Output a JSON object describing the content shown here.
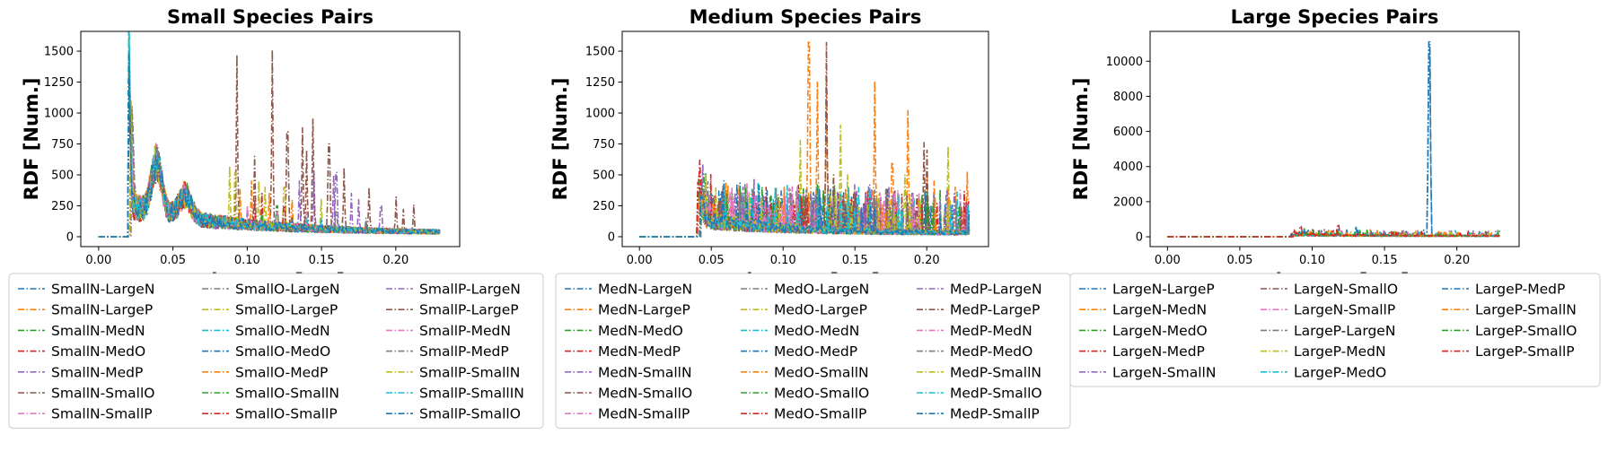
{
  "chart_data": [
    {
      "type": "line",
      "title": "Small Species Pairs",
      "xlabel": "Distance [nm]",
      "ylabel": "RDF [Num.]",
      "xlim": [
        -0.012,
        0.243
      ],
      "ylim": [
        -80,
        1660
      ],
      "xticks": [
        "0.00",
        "0.05",
        "0.10",
        "0.15",
        "0.20"
      ],
      "xtick_values": [
        0,
        0.05,
        0.1,
        0.15,
        0.2
      ],
      "yticks": [
        "0",
        "250",
        "500",
        "750",
        "1000",
        "1250",
        "1500"
      ],
      "ytick_values": [
        0,
        250,
        500,
        750,
        1000,
        1250,
        1500
      ],
      "legend_columns": 3,
      "legend_placement": "below",
      "series": [
        {
          "name": "SmallN-LargeN",
          "color": "#1f77b4",
          "onset": 0.02,
          "peak": 1150,
          "spikes": [
            [
              0.1,
              200
            ],
            [
              0.15,
              150
            ]
          ]
        },
        {
          "name": "SmallN-LargeP",
          "color": "#ff7f0e",
          "onset": 0.02,
          "peak": 1050,
          "spikes": [
            [
              0.095,
              380
            ],
            [
              0.13,
              300
            ]
          ]
        },
        {
          "name": "SmallN-MedN",
          "color": "#2ca02c",
          "onset": 0.02,
          "peak": 1270,
          "spikes": [
            [
              0.12,
              250
            ]
          ]
        },
        {
          "name": "SmallN-MedO",
          "color": "#d62728",
          "onset": 0.02,
          "peak": 1000,
          "spikes": [
            [
              0.11,
              350
            ]
          ]
        },
        {
          "name": "SmallN-MedP",
          "color": "#9467bd",
          "onset": 0.021,
          "peak": 950,
          "spikes": [
            [
              0.145,
              530
            ],
            [
              0.16,
              520
            ],
            [
              0.175,
              300
            ]
          ]
        },
        {
          "name": "SmallN-SmallO",
          "color": "#8c564b",
          "onset": 0.02,
          "peak": 900,
          "spikes": [
            [
              0.093,
              1470
            ],
            [
              0.117,
              1510
            ],
            [
              0.127,
              850
            ],
            [
              0.137,
              880
            ],
            [
              0.144,
              950
            ],
            [
              0.155,
              750
            ],
            [
              0.165,
              560
            ],
            [
              0.2,
              320
            ],
            [
              0.212,
              260
            ]
          ]
        },
        {
          "name": "SmallN-SmallP",
          "color": "#e377c2",
          "onset": 0.02,
          "peak": 850,
          "spikes": [
            [
              0.06,
              200
            ],
            [
              0.1,
              250
            ],
            [
              0.14,
              200
            ]
          ]
        },
        {
          "name": "SmallO-LargeN",
          "color": "#7f7f7f",
          "onset": 0.021,
          "peak": 900,
          "spikes": [
            [
              0.12,
              200
            ],
            [
              0.18,
              150
            ]
          ]
        },
        {
          "name": "SmallO-LargeP",
          "color": "#bcbd22",
          "onset": 0.021,
          "peak": 800,
          "spikes": [
            [
              0.088,
              570
            ],
            [
              0.108,
              450
            ],
            [
              0.125,
              400
            ],
            [
              0.15,
              300
            ]
          ]
        },
        {
          "name": "SmallO-MedN",
          "color": "#17becf",
          "onset": 0.02,
          "peak": 1580,
          "spikes": [
            [
              0.14,
              150
            ]
          ]
        },
        {
          "name": "SmallO-MedO",
          "color": "#1f77b4",
          "onset": 0.02,
          "peak": 1100,
          "spikes": [
            [
              0.13,
              150
            ]
          ]
        },
        {
          "name": "SmallO-MedP",
          "color": "#ff7f0e",
          "onset": 0.021,
          "peak": 900,
          "spikes": [
            [
              0.103,
              450
            ],
            [
              0.115,
              350
            ]
          ]
        },
        {
          "name": "SmallO-SmallN",
          "color": "#2ca02c",
          "onset": 0.02,
          "peak": 1000,
          "spikes": [
            [
              0.11,
              200
            ]
          ]
        },
        {
          "name": "SmallO-SmallP",
          "color": "#d62728",
          "onset": 0.02,
          "peak": 950,
          "spikes": [
            [
              0.105,
              300
            ],
            [
              0.125,
              250
            ]
          ]
        },
        {
          "name": "SmallP-LargeN",
          "color": "#9467bd",
          "onset": 0.022,
          "peak": 800,
          "spikes": [
            [
              0.135,
              450
            ],
            [
              0.158,
              500
            ],
            [
              0.17,
              350
            ],
            [
              0.19,
              250
            ]
          ]
        },
        {
          "name": "SmallP-LargeP",
          "color": "#8c564b",
          "onset": 0.021,
          "peak": 800,
          "spikes": [
            [
              0.105,
              650
            ],
            [
              0.14,
              700
            ],
            [
              0.182,
              400
            ],
            [
              0.205,
              220
            ]
          ]
        },
        {
          "name": "SmallP-MedN",
          "color": "#e377c2",
          "onset": 0.021,
          "peak": 750,
          "spikes": [
            [
              0.12,
              200
            ]
          ]
        },
        {
          "name": "SmallP-MedP",
          "color": "#7f7f7f",
          "onset": 0.022,
          "peak": 800,
          "spikes": [
            [
              0.16,
              200
            ]
          ]
        },
        {
          "name": "SmallP-SmallN",
          "color": "#bcbd22",
          "onset": 0.021,
          "peak": 850,
          "spikes": [
            [
              0.092,
              520
            ],
            [
              0.112,
              400
            ]
          ]
        },
        {
          "name": "SmallP-SmallIN",
          "color": "#17becf",
          "onset": 0.02,
          "peak": 1500,
          "spikes": [
            [
              0.15,
              150
            ]
          ]
        },
        {
          "name": "SmallP-SmallO",
          "color": "#1f77b4",
          "onset": 0.02,
          "peak": 1150,
          "spikes": [
            [
              0.08,
              150
            ]
          ]
        }
      ]
    },
    {
      "type": "line",
      "title": "Medium Species Pairs",
      "xlabel": "Distance [nm]",
      "ylabel": "RDF [Num.]",
      "xlim": [
        -0.012,
        0.243
      ],
      "ylim": [
        -80,
        1660
      ],
      "xticks": [
        "0.00",
        "0.05",
        "0.10",
        "0.15",
        "0.20"
      ],
      "xtick_values": [
        0,
        0.05,
        0.1,
        0.15,
        0.2
      ],
      "yticks": [
        "0",
        "250",
        "500",
        "750",
        "1000",
        "1250",
        "1500"
      ],
      "ytick_values": [
        0,
        250,
        500,
        750,
        1000,
        1250,
        1500
      ],
      "legend_columns": 3,
      "legend_placement": "below",
      "series": [
        {
          "name": "MedN-LargeN",
          "color": "#1f77b4",
          "onset": 0.04,
          "peak": 230,
          "spikes": [
            [
              0.057,
              360
            ],
            [
              0.12,
              200
            ],
            [
              0.16,
              180
            ]
          ]
        },
        {
          "name": "MedN-LargeP",
          "color": "#ff7f0e",
          "onset": 0.04,
          "peak": 200,
          "spikes": [
            [
              0.118,
              1580
            ],
            [
              0.124,
              1250
            ],
            [
              0.13,
              1300
            ],
            [
              0.164,
              1260
            ],
            [
              0.176,
              600
            ],
            [
              0.187,
              1020
            ],
            [
              0.2,
              500
            ],
            [
              0.205,
              450
            ],
            [
              0.22,
              400
            ],
            [
              0.228,
              520
            ]
          ]
        },
        {
          "name": "MedN-MedO",
          "color": "#2ca02c",
          "onset": 0.04,
          "peak": 270,
          "spikes": [
            [
              0.1,
              150
            ]
          ]
        },
        {
          "name": "MedN-MedP",
          "color": "#d62728",
          "onset": 0.04,
          "peak": 360,
          "spikes": [
            [
              0.07,
              150
            ]
          ]
        },
        {
          "name": "MedN-SmallN",
          "color": "#9467bd",
          "onset": 0.041,
          "peak": 180,
          "spikes": [
            [
              0.135,
              350
            ],
            [
              0.15,
              420
            ],
            [
              0.2,
              330
            ]
          ]
        },
        {
          "name": "MedN-SmallO",
          "color": "#8c564b",
          "onset": 0.041,
          "peak": 170,
          "spikes": [
            [
              0.13,
              1570
            ],
            [
              0.198,
              760
            ],
            [
              0.172,
              350
            ]
          ]
        },
        {
          "name": "MedN-SmallP",
          "color": "#e377c2",
          "onset": 0.042,
          "peak": 150,
          "spikes": [
            [
              0.09,
              250
            ],
            [
              0.11,
              200
            ]
          ]
        },
        {
          "name": "MedO-LargeN",
          "color": "#7f7f7f",
          "onset": 0.042,
          "peak": 150,
          "spikes": [
            [
              0.08,
              300
            ],
            [
              0.18,
              200
            ]
          ]
        },
        {
          "name": "MedO-LargeP",
          "color": "#bcbd22",
          "onset": 0.04,
          "peak": 200,
          "spikes": [
            [
              0.112,
              780
            ],
            [
              0.14,
              900
            ],
            [
              0.185,
              500
            ],
            [
              0.215,
              730
            ]
          ]
        },
        {
          "name": "MedO-MedN",
          "color": "#17becf",
          "onset": 0.04,
          "peak": 180,
          "spikes": [
            [
              0.15,
              200
            ]
          ]
        },
        {
          "name": "MedO-MedP",
          "color": "#1f77b4",
          "onset": 0.04,
          "peak": 160,
          "spikes": [
            [
              0.13,
              200
            ]
          ]
        },
        {
          "name": "MedO-SmallN",
          "color": "#ff7f0e",
          "onset": 0.041,
          "peak": 180,
          "spikes": [
            [
              0.165,
              300
            ]
          ]
        },
        {
          "name": "MedO-SmallO",
          "color": "#2ca02c",
          "onset": 0.04,
          "peak": 200,
          "spikes": [
            [
              0.12,
              200
            ]
          ]
        },
        {
          "name": "MedO-SmallP",
          "color": "#d62728",
          "onset": 0.04,
          "peak": 300,
          "spikes": [
            [
              0.06,
              150
            ]
          ]
        },
        {
          "name": "MedP-LargeN",
          "color": "#9467bd",
          "onset": 0.042,
          "peak": 160,
          "spikes": [
            [
              0.125,
              380
            ],
            [
              0.16,
              420
            ],
            [
              0.19,
              350
            ]
          ]
        },
        {
          "name": "MedP-LargeP",
          "color": "#8c564b",
          "onset": 0.042,
          "peak": 160,
          "spikes": [
            [
              0.135,
              500
            ],
            [
              0.2,
              700
            ]
          ]
        },
        {
          "name": "MedP-MedN",
          "color": "#e377c2",
          "onset": 0.043,
          "peak": 150,
          "spikes": [
            [
              0.085,
              300
            ],
            [
              0.105,
              250
            ]
          ]
        },
        {
          "name": "MedP-MedO",
          "color": "#7f7f7f",
          "onset": 0.043,
          "peak": 150,
          "spikes": [
            [
              0.09,
              200
            ]
          ]
        },
        {
          "name": "MedP-SmallN",
          "color": "#bcbd22",
          "onset": 0.042,
          "peak": 170,
          "spikes": [
            [
              0.145,
              500
            ]
          ]
        },
        {
          "name": "MedP-SmallO",
          "color": "#17becf",
          "onset": 0.042,
          "peak": 160,
          "spikes": [
            [
              0.11,
              200
            ]
          ]
        },
        {
          "name": "MedP-SmallP",
          "color": "#1f77b4",
          "onset": 0.042,
          "peak": 160,
          "spikes": [
            [
              0.16,
              200
            ]
          ]
        }
      ]
    },
    {
      "type": "line",
      "title": "Large Species Pairs",
      "xlabel": "Distance [nm]",
      "ylabel": "RDF [Num.]",
      "xlim": [
        -0.012,
        0.243
      ],
      "ylim": [
        -560,
        11700
      ],
      "xticks": [
        "0.00",
        "0.05",
        "0.10",
        "0.15",
        "0.20"
      ],
      "xtick_values": [
        0,
        0.05,
        0.1,
        0.15,
        0.2
      ],
      "yticks": [
        "0",
        "2000",
        "4000",
        "6000",
        "8000",
        "10000"
      ],
      "ytick_values": [
        0,
        2000,
        4000,
        6000,
        8000,
        10000
      ],
      "legend_columns": 3,
      "legend_placement": "below",
      "series": [
        {
          "name": "LargeN-LargeP",
          "color": "#1f77b4",
          "onset": 0.085,
          "peak": 300,
          "spikes": [
            [
              0.181,
              11100
            ],
            [
              0.13,
              600
            ]
          ]
        },
        {
          "name": "LargeN-MedN",
          "color": "#ff7f0e",
          "onset": 0.085,
          "peak": 250,
          "spikes": [
            [
              0.14,
              400
            ]
          ]
        },
        {
          "name": "LargeN-MedO",
          "color": "#2ca02c",
          "onset": 0.085,
          "peak": 250,
          "spikes": [
            [
              0.11,
              300
            ]
          ]
        },
        {
          "name": "LargeN-MedP",
          "color": "#d62728",
          "onset": 0.085,
          "peak": 300,
          "spikes": [
            [
              0.092,
              600
            ],
            [
              0.118,
              700
            ]
          ]
        },
        {
          "name": "LargeN-SmallN",
          "color": "#9467bd",
          "onset": 0.086,
          "peak": 250,
          "spikes": [
            [
              0.15,
              400
            ]
          ]
        },
        {
          "name": "LargeN-SmallO",
          "color": "#8c564b",
          "onset": 0.086,
          "peak": 250,
          "spikes": [
            [
              0.16,
              300
            ]
          ]
        },
        {
          "name": "LargeN-SmallP",
          "color": "#e377c2",
          "onset": 0.087,
          "peak": 200,
          "spikes": [
            [
              0.12,
              250
            ]
          ]
        },
        {
          "name": "LargeP-LargeN",
          "color": "#7f7f7f",
          "onset": 0.087,
          "peak": 200,
          "spikes": [
            [
              0.17,
              300
            ]
          ]
        },
        {
          "name": "LargeP-MedN",
          "color": "#bcbd22",
          "onset": 0.086,
          "peak": 250,
          "spikes": [
            [
              0.145,
              350
            ]
          ]
        },
        {
          "name": "LargeP-MedO",
          "color": "#17becf",
          "onset": 0.086,
          "peak": 200,
          "spikes": [
            [
              0.19,
              250
            ]
          ]
        },
        {
          "name": "LargeP-MedP",
          "color": "#1f77b4",
          "onset": 0.086,
          "peak": 250,
          "spikes": [
            [
              0.181,
              10800
            ]
          ]
        },
        {
          "name": "LargeP-SmallN",
          "color": "#ff7f0e",
          "onset": 0.087,
          "peak": 200,
          "spikes": [
            [
              0.2,
              250
            ]
          ]
        },
        {
          "name": "LargeP-SmallO",
          "color": "#2ca02c",
          "onset": 0.087,
          "peak": 200,
          "spikes": [
            [
              0.21,
              200
            ]
          ]
        },
        {
          "name": "LargeP-SmallP",
          "color": "#d62728",
          "onset": 0.087,
          "peak": 250,
          "spikes": [
            [
              0.1,
              400
            ]
          ]
        }
      ]
    }
  ]
}
